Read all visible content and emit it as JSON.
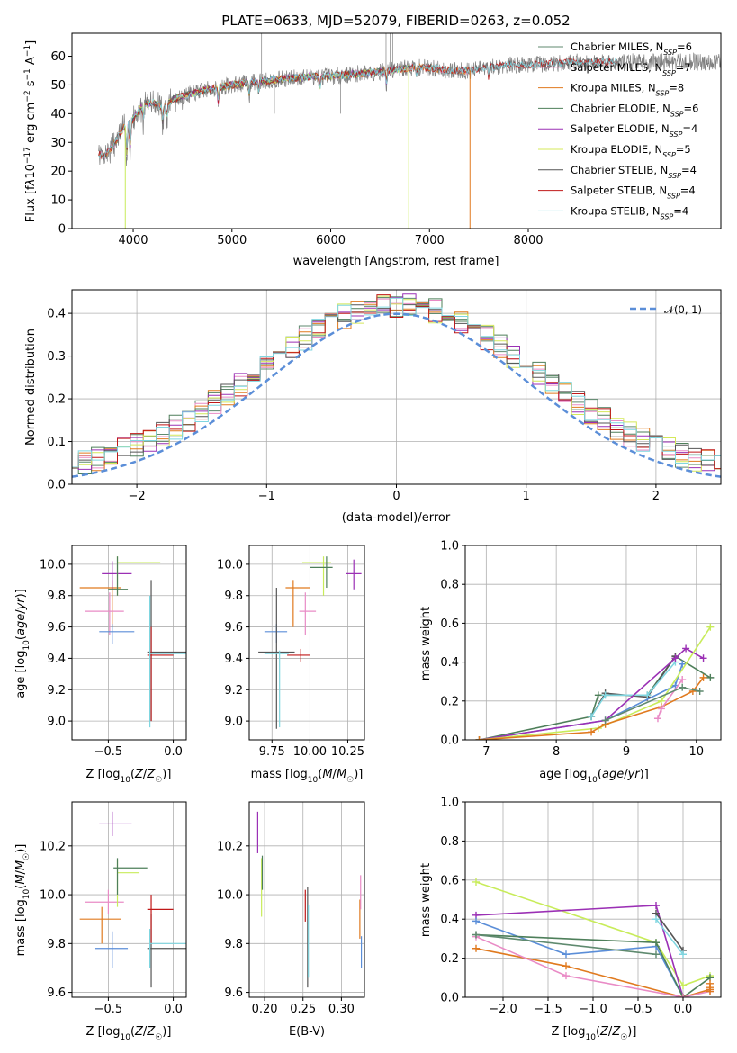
{
  "colors": {
    "Chabrier MILES": "#5f8a6f",
    "Salpeter MILES": "#e98bc6",
    "Kroupa MILES": "#e07a1f",
    "Chabrier ELODIE": "#4e7f5a",
    "Salpeter ELODIE": "#9b30b5",
    "Kroupa ELODIE": "#d4e85a",
    "Chabrier STELIB": "#555555",
    "Salpeter STELIB": "#c01818",
    "Kroupa STELIB": "#7fd6e0",
    "data": "#808080",
    "blue": "#5b8ed8",
    "green_light": "#c8ec5a"
  },
  "chart_data": [
    {
      "id": "spectrum",
      "type": "line",
      "title": "PLATE=0633, MJD=52079, FIBERID=0263, z=0.052",
      "xlabel": "wavelength [Angstrom, rest frame]",
      "ylabel": "Flux [fλ10⁻¹⁷ erg cm⁻² s⁻¹ A⁻¹]",
      "xlim": [
        3380,
        9950
      ],
      "ylim": [
        0,
        68
      ],
      "xticks": [
        "4000",
        "5000",
        "6000",
        "7000",
        "8000"
      ],
      "yticks": [
        "0",
        "10",
        "20",
        "30",
        "40",
        "50",
        "60"
      ],
      "grid": false,
      "legend_position": "right",
      "legend": [
        {
          "label": "Chabrier MILES, N",
          "sub": "SSP",
          "tail": "=6"
        },
        {
          "label": "Salpeter MILES, N",
          "sub": "SSP",
          "tail": "=7"
        },
        {
          "label": "Kroupa MILES, N",
          "sub": "SSP",
          "tail": "=8"
        },
        {
          "label": "Chabrier ELODIE, N",
          "sub": "SSP",
          "tail": "=6"
        },
        {
          "label": "Salpeter ELODIE, N",
          "sub": "SSP",
          "tail": "=4"
        },
        {
          "label": "Kroupa ELODIE, N",
          "sub": "SSP",
          "tail": "=5"
        },
        {
          "label": "Chabrier STELIB, N",
          "sub": "SSP",
          "tail": "=4"
        },
        {
          "label": "Salpeter STELIB, N",
          "sub": "SSP",
          "tail": "=4"
        },
        {
          "label": "Kroupa STELIB, N",
          "sub": "SSP",
          "tail": "=4"
        }
      ],
      "continuum_x": [
        3650,
        3700,
        3800,
        3900,
        4000,
        4100,
        4200,
        4300,
        4400,
        4500,
        4700,
        5000,
        5200,
        5500,
        5800,
        6000,
        6300,
        6600,
        6800,
        7000,
        7200,
        7400,
        7600,
        7800,
        8000,
        8500,
        9000,
        9500,
        9950
      ],
      "continuum_y": [
        26,
        25,
        29,
        35,
        38,
        43,
        44,
        42,
        45,
        46,
        48,
        50,
        51,
        52,
        53,
        53,
        54,
        55,
        56,
        56,
        55,
        55,
        56,
        57,
        57,
        58,
        58,
        58,
        58
      ],
      "model_ranges": [
        {
          "model": "Chabrier MILES",
          "from": 3650,
          "to": 7400
        },
        {
          "model": "Salpeter MILES",
          "from": 3650,
          "to": 7400
        },
        {
          "model": "Kroupa MILES",
          "from": 3650,
          "to": 7400
        },
        {
          "model": "Chabrier ELODIE",
          "from": 3900,
          "to": 6800
        },
        {
          "model": "Salpeter ELODIE",
          "from": 3900,
          "to": 6800
        },
        {
          "model": "Kroupa ELODIE",
          "from": 3900,
          "to": 6800
        },
        {
          "model": "Chabrier STELIB",
          "from": 3650,
          "to": 8900
        },
        {
          "model": "Salpeter STELIB",
          "from": 3650,
          "to": 8900
        },
        {
          "model": "Kroupa STELIB",
          "from": 3650,
          "to": 8900
        }
      ]
    },
    {
      "id": "residuals",
      "type": "line",
      "xlabel": "(data-model)/error",
      "ylabel": "Normed distribution",
      "xlim": [
        -2.5,
        2.5
      ],
      "ylim": [
        0,
        0.455
      ],
      "xticks": [
        "−2",
        "−1",
        "0",
        "1",
        "2"
      ],
      "yticks": [
        "0.0",
        "0.1",
        "0.2",
        "0.3",
        "0.4"
      ],
      "grid": true,
      "legend_position": "top-right",
      "legend": [
        "𝒩(0, 1)"
      ],
      "bin_width": 0.1
    },
    {
      "id": "age_vs_Z",
      "type": "scatter",
      "xlabel": "Z [log₁₀(Z/Z☉)]",
      "ylabel": "age  [log₁₀(age/yr)]",
      "xlim": [
        -0.78,
        0.1
      ],
      "ylim": [
        8.88,
        10.12
      ],
      "xticks": [
        "−0.5",
        "0.0"
      ],
      "yticks": [
        "9.0",
        "9.2",
        "9.4",
        "9.6",
        "9.8",
        "10.0"
      ],
      "grid": true,
      "points": [
        {
          "c": "#e07a1f",
          "x": -0.47,
          "xe": [
            -0.72,
            -0.4
          ],
          "y": 9.85,
          "ye": [
            9.6,
            9.9
          ]
        },
        {
          "c": "#e98bc6",
          "x": -0.49,
          "xe": [
            -0.68,
            -0.38
          ],
          "y": 9.7,
          "ye": [
            9.55,
            9.82
          ]
        },
        {
          "c": "#5b8ed8",
          "x": -0.47,
          "xe": [
            -0.57,
            -0.3
          ],
          "y": 9.57,
          "ye": [
            9.49,
            9.62
          ]
        },
        {
          "c": "#9b30b5",
          "x": -0.47,
          "xe": [
            -0.55,
            -0.32
          ],
          "y": 9.94,
          "ye": [
            9.84,
            10.02
          ]
        },
        {
          "c": "#c8ec5a",
          "x": -0.43,
          "xe": [
            -0.43,
            -0.1
          ],
          "y": 10.01,
          "ye": [
            9.8,
            10.05
          ]
        },
        {
          "c": "#4e7f5a",
          "x": -0.43,
          "xe": [
            -0.5,
            -0.35
          ],
          "y": 9.84,
          "ye": [
            9.8,
            10.05
          ]
        },
        {
          "c": "#555555",
          "x": -0.17,
          "xe": [
            -0.2,
            0.1
          ],
          "y": 9.44,
          "ye": [
            9.0,
            9.9
          ]
        },
        {
          "c": "#c01818",
          "x": -0.17,
          "xe": [
            -0.2,
            0.0
          ],
          "y": 9.42,
          "ye": [
            9.0,
            9.6
          ]
        },
        {
          "c": "#7fd6e0",
          "x": -0.18,
          "xe": [
            -0.18,
            0.1
          ],
          "y": 9.43,
          "ye": [
            8.96,
            9.8
          ]
        }
      ]
    },
    {
      "id": "age_vs_mass",
      "type": "scatter",
      "xlabel": "mass [log₁₀(M/M☉)]",
      "xlim": [
        9.6,
        10.36
      ],
      "ylim": [
        8.88,
        10.12
      ],
      "xticks": [
        "9.75",
        "10.00",
        "10.25"
      ],
      "yticks": [
        "9.0",
        "9.2",
        "9.4",
        "9.6",
        "9.8",
        "10.0"
      ],
      "grid": true,
      "points": [
        {
          "c": "#e07a1f",
          "x": 9.89,
          "xe": [
            9.84,
            10.0
          ],
          "y": 9.85,
          "ye": [
            9.6,
            9.9
          ]
        },
        {
          "c": "#e98bc6",
          "x": 9.97,
          "xe": [
            9.93,
            10.04
          ],
          "y": 9.7,
          "ye": [
            9.55,
            9.82
          ]
        },
        {
          "c": "#5b8ed8",
          "x": 9.78,
          "xe": [
            9.7,
            9.85
          ],
          "y": 9.57,
          "ye": [
            9.5,
            9.62
          ]
        },
        {
          "c": "#9b30b5",
          "x": 10.29,
          "xe": [
            10.24,
            10.34
          ],
          "y": 9.94,
          "ye": [
            9.84,
            10.03
          ]
        },
        {
          "c": "#c8ec5a",
          "x": 10.09,
          "xe": [
            9.95,
            10.14
          ],
          "y": 10.01,
          "ye": [
            9.8,
            10.05
          ]
        },
        {
          "c": "#4e7f5a",
          "x": 10.11,
          "xe": [
            10.0,
            10.15
          ],
          "y": 9.98,
          "ye": [
            9.85,
            10.05
          ]
        },
        {
          "c": "#555555",
          "x": 9.78,
          "xe": [
            9.66,
            9.9
          ],
          "y": 9.44,
          "ye": [
            8.95,
            9.85
          ]
        },
        {
          "c": "#c01818",
          "x": 9.94,
          "xe": [
            9.85,
            10.0
          ],
          "y": 9.42,
          "ye": [
            9.38,
            9.46
          ]
        },
        {
          "c": "#7fd6e0",
          "x": 9.8,
          "xe": [
            9.7,
            9.86
          ],
          "y": 9.43,
          "ye": [
            8.96,
            9.45
          ]
        }
      ]
    },
    {
      "id": "weight_vs_age",
      "type": "line",
      "xlabel": "age  [log₁₀(age/yr)]",
      "ylabel": "mass weight",
      "xlim": [
        6.7,
        10.35
      ],
      "ylim": [
        0,
        1.0
      ],
      "xticks": [
        "7",
        "8",
        "9",
        "10"
      ],
      "yticks": [
        "0.0",
        "0.2",
        "0.4",
        "0.6",
        "0.8",
        "1.0"
      ],
      "grid": true,
      "series": [
        {
          "c": "#4e7f5a",
          "x": [
            6.9,
            8.5,
            8.6,
            9.3,
            9.7,
            10.2
          ],
          "y": [
            0.0,
            0.12,
            0.23,
            0.23,
            0.43,
            0.32
          ]
        },
        {
          "c": "#555555",
          "x": [
            8.5,
            8.7,
            9.3,
            9.7
          ],
          "y": [
            0.12,
            0.24,
            0.22,
            0.43
          ]
        },
        {
          "c": "#7fd6e0",
          "x": [
            8.5,
            8.7,
            9.3,
            9.7
          ],
          "y": [
            0.12,
            0.23,
            0.23,
            0.4
          ]
        },
        {
          "c": "#5b8ed8",
          "x": [
            6.9,
            8.7,
            9.7,
            9.8
          ],
          "y": [
            0.0,
            0.1,
            0.28,
            0.39
          ]
        },
        {
          "c": "#9b30b5",
          "x": [
            6.9,
            8.7,
            9.7,
            9.85,
            10.1
          ],
          "y": [
            0.0,
            0.1,
            0.42,
            0.47,
            0.42
          ]
        },
        {
          "c": "#c8ec5a",
          "x": [
            6.9,
            8.6,
            9.5,
            10.2
          ],
          "y": [
            0.0,
            0.06,
            0.2,
            0.58
          ]
        },
        {
          "c": "#e07a1f",
          "x": [
            6.9,
            8.5,
            8.7,
            9.5,
            9.95,
            10.1
          ],
          "y": [
            0.0,
            0.04,
            0.08,
            0.17,
            0.25,
            0.32
          ]
        },
        {
          "c": "#e98bc6",
          "x": [
            9.45,
            9.5,
            9.8
          ],
          "y": [
            0.11,
            0.16,
            0.31
          ]
        },
        {
          "c": "#5f8a6f",
          "x": [
            8.7,
            9.8,
            10.05
          ],
          "y": [
            0.1,
            0.27,
            0.25
          ]
        }
      ]
    },
    {
      "id": "mass_vs_Z",
      "type": "scatter",
      "xlabel": "Z [log₁₀(Z/Z☉)]",
      "ylabel": "mass [log₁₀(M/M☉)]",
      "xlim": [
        -0.78,
        0.1
      ],
      "ylim": [
        9.58,
        10.38
      ],
      "xticks": [
        "−0.5",
        "0.0"
      ],
      "yticks": [
        "9.6",
        "9.8",
        "10.0",
        "10.2"
      ],
      "grid": true,
      "points": [
        {
          "c": "#e07a1f",
          "x": -0.55,
          "xe": [
            -0.72,
            -0.4
          ],
          "y": 9.9,
          "ye": [
            9.8,
            9.95
          ]
        },
        {
          "c": "#e98bc6",
          "x": -0.5,
          "xe": [
            -0.68,
            -0.38
          ],
          "y": 9.97,
          "ye": [
            9.92,
            10.02
          ]
        },
        {
          "c": "#5b8ed8",
          "x": -0.47,
          "xe": [
            -0.6,
            -0.35
          ],
          "y": 9.78,
          "ye": [
            9.7,
            9.85
          ]
        },
        {
          "c": "#9b30b5",
          "x": -0.47,
          "xe": [
            -0.57,
            -0.32
          ],
          "y": 10.29,
          "ye": [
            10.24,
            10.34
          ]
        },
        {
          "c": "#c8ec5a",
          "x": -0.43,
          "xe": [
            -0.43,
            -0.26
          ],
          "y": 10.09,
          "ye": [
            9.95,
            10.14
          ]
        },
        {
          "c": "#4e7f5a",
          "x": -0.43,
          "xe": [
            -0.46,
            -0.2
          ],
          "y": 10.11,
          "ye": [
            10.0,
            10.15
          ]
        },
        {
          "c": "#555555",
          "x": -0.17,
          "xe": [
            -0.2,
            0.1
          ],
          "y": 9.78,
          "ye": [
            9.62,
            9.92
          ]
        },
        {
          "c": "#c01818",
          "x": -0.17,
          "xe": [
            -0.2,
            0.0
          ],
          "y": 9.94,
          "ye": [
            9.8,
            10.0
          ]
        },
        {
          "c": "#7fd6e0",
          "x": -0.18,
          "xe": [
            -0.18,
            0.1
          ],
          "y": 9.8,
          "ye": [
            9.7,
            9.86
          ]
        }
      ]
    },
    {
      "id": "mass_vs_ebv",
      "type": "scatter",
      "xlabel": "E(B-V)",
      "xlim": [
        0.18,
        0.33
      ],
      "ylim": [
        9.58,
        10.38
      ],
      "xticks": [
        "0.20",
        "0.25",
        "0.30"
      ],
      "yticks": [
        "9.6",
        "9.8",
        "10.0",
        "10.2"
      ],
      "grid": true,
      "points": [
        {
          "c": "#9b30b5",
          "x": 0.191,
          "ye": [
            10.17,
            10.34
          ]
        },
        {
          "c": "#c8ec5a",
          "x": 0.196,
          "ye": [
            9.91,
            10.15
          ]
        },
        {
          "c": "#4e7f5a",
          "x": 0.197,
          "ye": [
            10.02,
            10.16
          ]
        },
        {
          "c": "#c01818",
          "x": 0.253,
          "ye": [
            9.89,
            10.02
          ]
        },
        {
          "c": "#555555",
          "x": 0.256,
          "ye": [
            9.62,
            10.03
          ]
        },
        {
          "c": "#7fd6e0",
          "x": 0.257,
          "ye": [
            9.66,
            9.96
          ]
        },
        {
          "c": "#e07a1f",
          "x": 0.324,
          "ye": [
            9.82,
            9.98
          ]
        },
        {
          "c": "#e98bc6",
          "x": 0.325,
          "ye": [
            9.94,
            10.08
          ]
        },
        {
          "c": "#5b8ed8",
          "x": 0.326,
          "ye": [
            9.7,
            9.83
          ]
        }
      ]
    },
    {
      "id": "weight_vs_Z",
      "type": "line",
      "xlabel": "Z [log₁₀(Z/Z☉)]",
      "ylabel": "mass weight",
      "xlim": [
        -2.42,
        0.42
      ],
      "ylim": [
        0,
        1.0
      ],
      "xticks": [
        "−2.0",
        "−1.5",
        "−1.0",
        "−0.5",
        "0.0"
      ],
      "yticks": [
        "0.0",
        "0.2",
        "0.4",
        "0.6",
        "0.8",
        "1.0"
      ],
      "grid": true,
      "series": [
        {
          "c": "#c8ec5a",
          "x": [
            -2.3,
            -0.3,
            0.0,
            0.3
          ],
          "y": [
            0.59,
            0.28,
            0.06,
            0.11
          ]
        },
        {
          "c": "#9b30b5",
          "x": [
            -2.3,
            -0.3,
            0.0
          ],
          "y": [
            0.42,
            0.47,
            0.0
          ]
        },
        {
          "c": "#5b8ed8",
          "x": [
            -2.3,
            -1.3,
            -0.3,
            0.0
          ],
          "y": [
            0.39,
            0.22,
            0.26,
            0.0
          ]
        },
        {
          "c": "#4e7f5a",
          "x": [
            -2.3,
            -0.3,
            0.0,
            0.3
          ],
          "y": [
            0.32,
            0.28,
            0.0,
            0.1
          ]
        },
        {
          "c": "#555555",
          "x": [
            -0.3,
            0.0
          ],
          "y": [
            0.43,
            0.24
          ]
        },
        {
          "c": "#7fd6e0",
          "x": [
            -0.3,
            0.0
          ],
          "y": [
            0.4,
            0.22
          ]
        },
        {
          "c": "#e07a1f",
          "x": [
            -2.3,
            -1.3,
            0.0,
            0.3
          ],
          "y": [
            0.25,
            0.16,
            0.0,
            0.04
          ]
        },
        {
          "c": "#e98bc6",
          "x": [
            -2.3,
            -1.3,
            0.0,
            0.3
          ],
          "y": [
            0.31,
            0.11,
            0.0,
            0.03
          ]
        },
        {
          "c": "#5f8a6f",
          "x": [
            -2.3,
            -0.3
          ],
          "y": [
            0.32,
            0.22
          ]
        },
        {
          "c": "#e07a1f",
          "x": [
            0.3,
            0.3,
            0.3
          ],
          "y": [
            0.03,
            0.05,
            0.07
          ]
        }
      ]
    }
  ]
}
